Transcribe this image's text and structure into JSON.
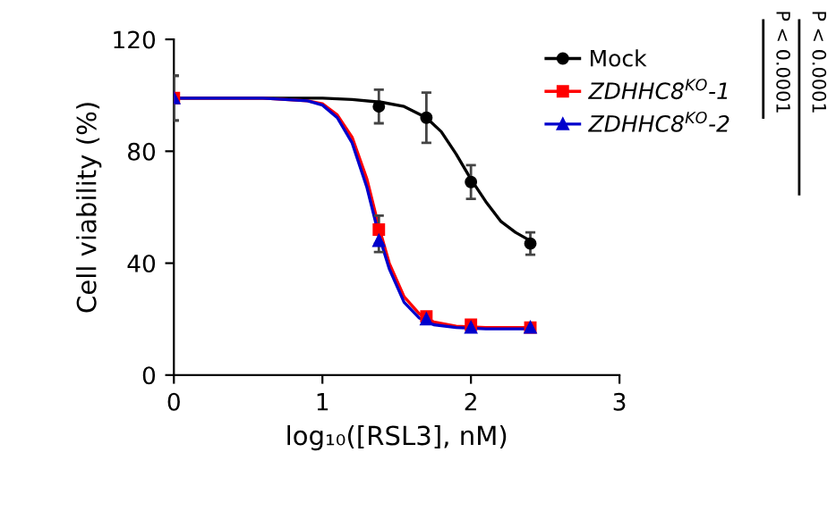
{
  "chart_data": {
    "type": "scatter",
    "xlabel": "log₁₀([RSL3], nM)",
    "ylabel": "Cell viability (%)",
    "xlim": [
      0,
      3
    ],
    "xticks": [
      0,
      1,
      2,
      3
    ],
    "ylim": [
      0,
      120
    ],
    "yticks": [
      0,
      40,
      80,
      120
    ],
    "grid": false,
    "legend": "top right",
    "series": [
      {
        "name": "Mock",
        "marker": "circle",
        "color": "#000000",
        "x": [
          1.38,
          1.7,
          2.0,
          2.4
        ],
        "values": [
          96,
          92,
          69,
          47
        ],
        "errors": [
          6,
          9,
          6,
          4
        ]
      },
      {
        "name": "ZDHHC8$^{KO}$-1",
        "marker": "square",
        "color": "#ff0000",
        "x": [
          0,
          1.38,
          1.7,
          2.0,
          2.4
        ],
        "values": [
          99,
          52,
          21,
          18,
          17
        ],
        "errors": [
          8,
          5,
          null,
          null,
          null
        ]
      },
      {
        "name": "ZDHHC8$^{KO}$-2",
        "marker": "triangle",
        "color": "#0000cc",
        "x": [
          0,
          1.38,
          1.7,
          2.0,
          2.4
        ],
        "values": [
          99,
          48,
          20,
          17,
          17
        ],
        "errors": [
          8,
          4,
          null,
          null,
          null
        ]
      },
      {
        "type": "line",
        "color": "#000000",
        "x": [
          0,
          0.6,
          1.0,
          1.2,
          1.4,
          1.55,
          1.7,
          1.8,
          1.9,
          2.0,
          2.1,
          2.2,
          2.3,
          2.4
        ],
        "values": [
          99,
          99,
          99,
          98.5,
          97.5,
          96,
          92,
          87,
          79,
          70,
          62,
          55,
          51,
          48
        ]
      },
      {
        "type": "line",
        "color": "#ff0000",
        "x": [
          0,
          0.6,
          0.9,
          1.0,
          1.1,
          1.2,
          1.3,
          1.38,
          1.45,
          1.55,
          1.65,
          1.75,
          1.9,
          2.1,
          2.4
        ],
        "values": [
          99,
          99,
          98,
          97,
          93,
          85,
          70,
          53,
          40,
          28,
          22,
          19,
          17.5,
          17,
          17
        ]
      },
      {
        "type": "line",
        "color": "#0000cc",
        "x": [
          0,
          0.6,
          0.9,
          1.0,
          1.1,
          1.2,
          1.3,
          1.38,
          1.45,
          1.55,
          1.65,
          1.75,
          1.9,
          2.1,
          2.4
        ],
        "values": [
          99,
          99,
          98,
          96.5,
          92,
          83,
          67,
          50,
          38,
          26,
          20.5,
          18,
          17,
          16.5,
          16.5
        ]
      }
    ],
    "annotations": [
      "P < 0.0001",
      "P < 0.0001"
    ]
  }
}
